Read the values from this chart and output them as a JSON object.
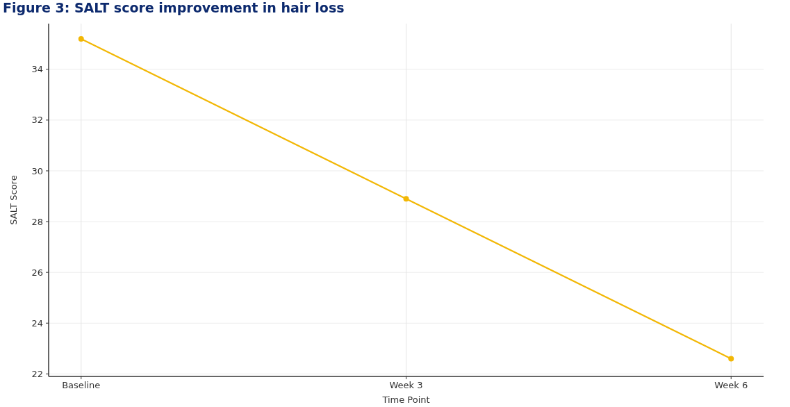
{
  "chart_data": {
    "type": "line",
    "title": "Figure 3: SALT score improvement in hair loss",
    "xlabel": "Time Point",
    "ylabel": "SALT Score",
    "categories": [
      "Baseline",
      "Week 3",
      "Week 6"
    ],
    "series": [
      {
        "color": "#f2b705",
        "values": [
          35.2,
          28.9,
          22.6
        ]
      }
    ],
    "ylim": [
      21.9,
      35.8
    ],
    "yticks": [
      22,
      24,
      26,
      28,
      30,
      32,
      34
    ],
    "grid": true,
    "marker": "circle",
    "line_style": "solid"
  }
}
